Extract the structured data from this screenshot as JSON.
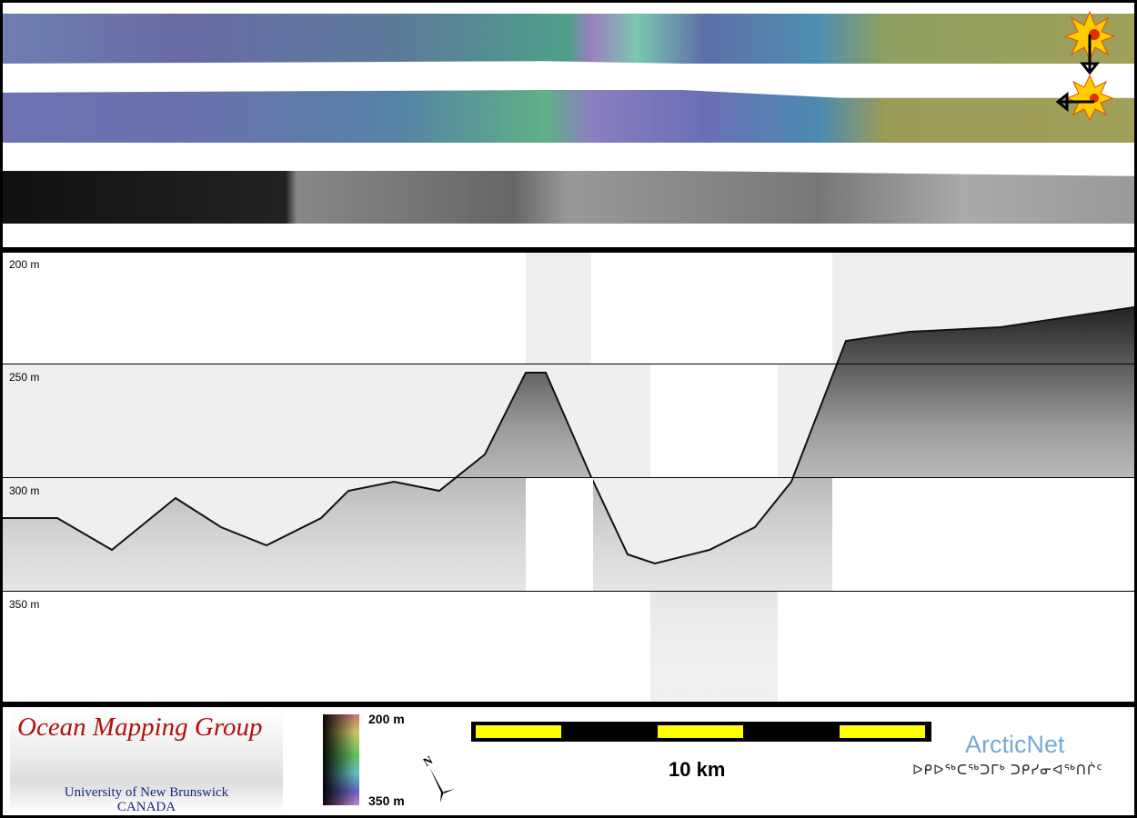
{
  "depth_labels": [
    "200 m",
    "250 m",
    "300 m",
    "350 m"
  ],
  "legend": {
    "top_label": "200 m",
    "bottom_label": "350 m"
  },
  "scale_bar": {
    "label": "10 km"
  },
  "north_arrow": {
    "label": "N"
  },
  "logos": {
    "omg_title": "Ocean Mapping Group",
    "omg_univ": "University of New Brunswick",
    "omg_country": "CANADA",
    "arcticnet": "ArcticNet",
    "arcticnet_syllabics": "ᐅᑭᐅᖅᑕᖅᑐᒥᒃ ᑐᑭᓯᓂᐊᖅᑎᒌᑦ"
  },
  "colors": {
    "scale_yellow": "#ffff00",
    "omg_red": "#b01010",
    "arcticnet_blue": "#78a9d8",
    "sun": "#ffcc00"
  },
  "icons": [
    "sun-illumination-icon",
    "arrow-down-icon",
    "arrow-left-icon",
    "north-arrow-icon"
  ]
}
